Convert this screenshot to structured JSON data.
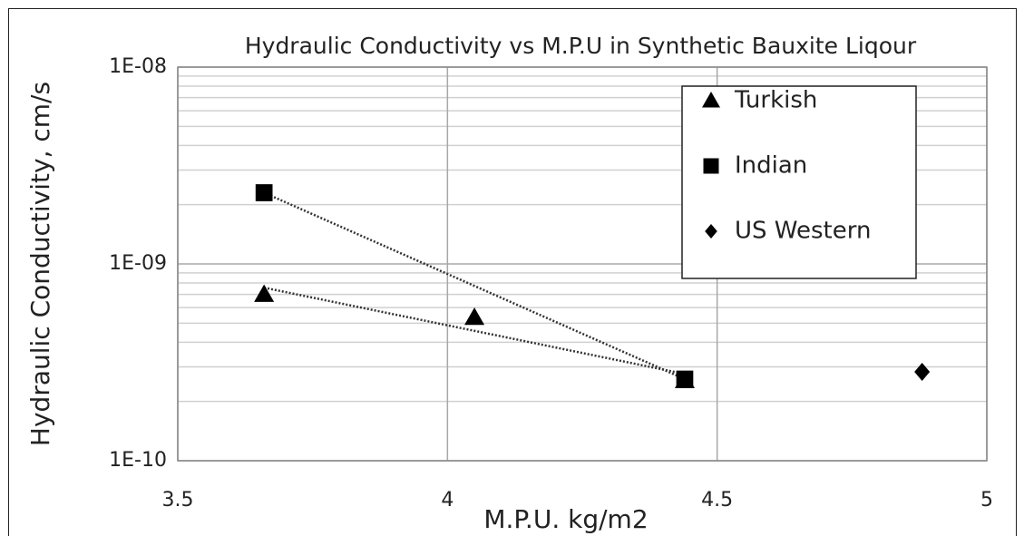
{
  "chart_data": {
    "type": "scatter",
    "title": "Hydraulic Conductivity vs M.P.U in Synthetic Bauxite Liqour",
    "x_label": "M.P.U.  kg/m2",
    "y_label": "Hydraulic Conductivity, cm/s",
    "xlim": [
      3.5,
      5
    ],
    "xticks": [
      3.5,
      4,
      4.5,
      5
    ],
    "ylim": [
      1e-10,
      1e-08
    ],
    "y_log": true,
    "yticks": [
      {
        "value": 1e-10,
        "label": "1E-10"
      },
      {
        "value": 1e-09,
        "label": "1E-09"
      },
      {
        "value": 1e-08,
        "label": "1E-08"
      }
    ],
    "grid": true,
    "minor_grid": true,
    "trendline": true,
    "legend": "upper right",
    "series": [
      {
        "name": "Turkish",
        "color": "#000000",
        "marker": "triangle",
        "x": [
          3.66,
          4.05,
          4.44
        ],
        "values": [
          7e-10,
          5.35e-10,
          2.55e-10
        ]
      },
      {
        "name": "Indian",
        "color": "#000000",
        "marker": "square",
        "x": [
          3.66,
          4.44
        ],
        "values": [
          2.3e-09,
          2.6e-10
        ]
      },
      {
        "name": "US Western",
        "color": "#000000",
        "marker": "diamond",
        "x": [
          4.88
        ],
        "values": [
          2.83e-10
        ]
      }
    ]
  }
}
